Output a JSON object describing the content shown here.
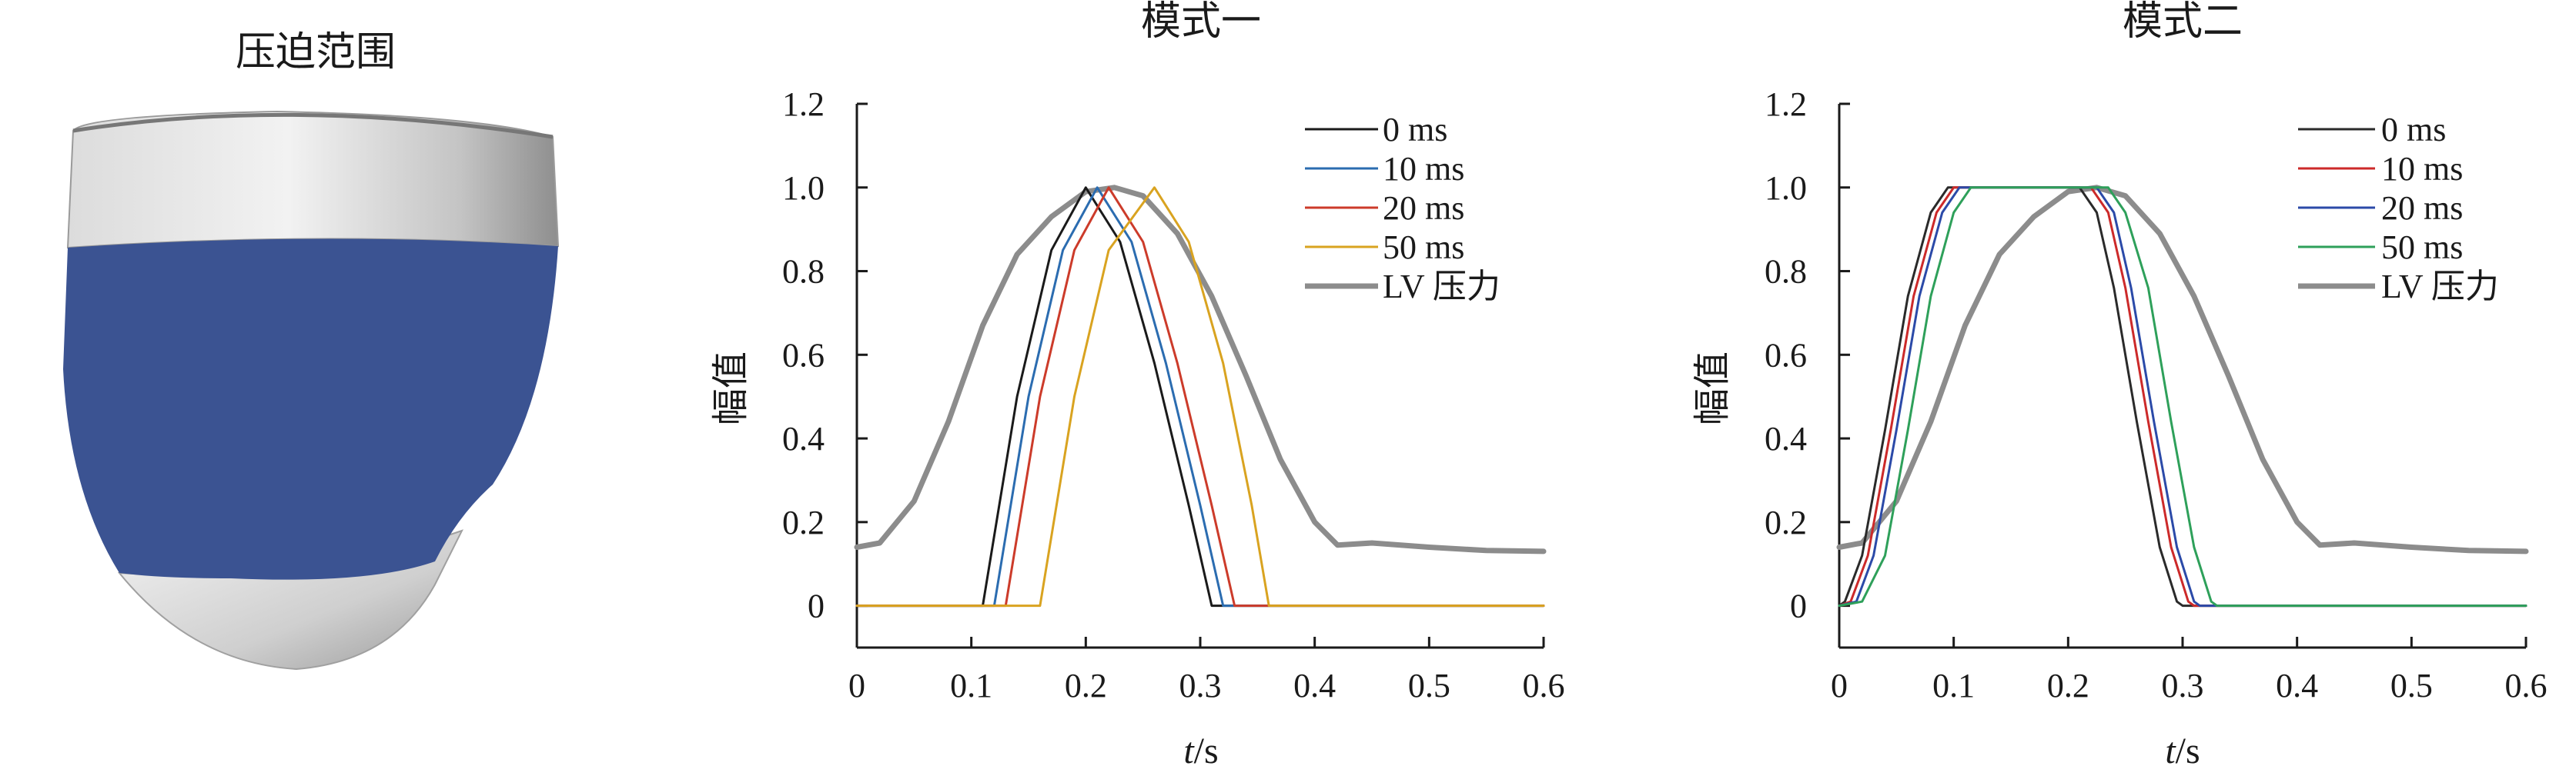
{
  "heart_panel": {
    "title": "压迫范围",
    "colors": {
      "band": "#3b5392",
      "tissue_light": "#f0f0f0",
      "tissue_dark": "#8c8c8c"
    }
  },
  "chart_data": [
    {
      "type": "line",
      "title": "模式一",
      "xlabel_italic": "t",
      "xlabel_unit": "/s",
      "ylabel": "幅值",
      "xlim": [
        0,
        0.6
      ],
      "ylim": [
        -0.1,
        1.2
      ],
      "xticks": [
        0,
        0.1,
        0.2,
        0.3,
        0.4,
        0.5,
        0.6
      ],
      "xtick_labels": [
        "0",
        "0.1",
        "0.2",
        "0.3",
        "0.4",
        "0.5",
        "0.6"
      ],
      "yticks": [
        0,
        0.2,
        0.4,
        0.6,
        0.8,
        1.0,
        1.2
      ],
      "ytick_labels": [
        "0",
        "0.2",
        "0.4",
        "0.6",
        "0.8",
        "1.0",
        "1.2"
      ],
      "grid": false,
      "legend_position": "top-right",
      "series": [
        {
          "name": "0 ms",
          "color": "#1a1a1a",
          "width": 3,
          "points": [
            [
              0,
              0
            ],
            [
              0.11,
              0
            ],
            [
              0.14,
              0.5
            ],
            [
              0.17,
              0.85
            ],
            [
              0.2,
              1.0
            ],
            [
              0.23,
              0.87
            ],
            [
              0.26,
              0.58
            ],
            [
              0.29,
              0.24
            ],
            [
              0.31,
              0
            ],
            [
              0.6,
              0
            ]
          ]
        },
        {
          "name": "10 ms",
          "color": "#2b6cb0",
          "width": 3,
          "points": [
            [
              0,
              0
            ],
            [
              0.12,
              0
            ],
            [
              0.15,
              0.5
            ],
            [
              0.18,
              0.85
            ],
            [
              0.21,
              1.0
            ],
            [
              0.24,
              0.87
            ],
            [
              0.27,
              0.58
            ],
            [
              0.3,
              0.24
            ],
            [
              0.32,
              0
            ],
            [
              0.6,
              0
            ]
          ]
        },
        {
          "name": "20 ms",
          "color": "#cc3b2a",
          "width": 3,
          "points": [
            [
              0,
              0
            ],
            [
              0.13,
              0
            ],
            [
              0.16,
              0.5
            ],
            [
              0.19,
              0.85
            ],
            [
              0.22,
              1.0
            ],
            [
              0.25,
              0.87
            ],
            [
              0.28,
              0.58
            ],
            [
              0.31,
              0.24
            ],
            [
              0.33,
              0
            ],
            [
              0.6,
              0
            ]
          ]
        },
        {
          "name": "50 ms",
          "color": "#d9a320",
          "width": 3,
          "points": [
            [
              0,
              0
            ],
            [
              0.16,
              0
            ],
            [
              0.19,
              0.5
            ],
            [
              0.22,
              0.85
            ],
            [
              0.26,
              1.0
            ],
            [
              0.29,
              0.87
            ],
            [
              0.32,
              0.58
            ],
            [
              0.345,
              0.24
            ],
            [
              0.36,
              0
            ],
            [
              0.6,
              0
            ]
          ]
        },
        {
          "name": "LV 压力",
          "color": "#8c8c8c",
          "width": 7,
          "points": [
            [
              0,
              0.14
            ],
            [
              0.02,
              0.15
            ],
            [
              0.05,
              0.25
            ],
            [
              0.08,
              0.44
            ],
            [
              0.11,
              0.67
            ],
            [
              0.14,
              0.84
            ],
            [
              0.17,
              0.93
            ],
            [
              0.2,
              0.99
            ],
            [
              0.225,
              1.0
            ],
            [
              0.25,
              0.98
            ],
            [
              0.28,
              0.89
            ],
            [
              0.31,
              0.74
            ],
            [
              0.34,
              0.55
            ],
            [
              0.37,
              0.35
            ],
            [
              0.4,
              0.2
            ],
            [
              0.42,
              0.145
            ],
            [
              0.45,
              0.15
            ],
            [
              0.5,
              0.14
            ],
            [
              0.55,
              0.132
            ],
            [
              0.6,
              0.13
            ]
          ]
        }
      ]
    },
    {
      "type": "line",
      "title": "模式二",
      "xlabel_italic": "t",
      "xlabel_unit": "/s",
      "ylabel": "幅值",
      "xlim": [
        0,
        0.6
      ],
      "ylim": [
        -0.1,
        1.2
      ],
      "xticks": [
        0,
        0.1,
        0.2,
        0.3,
        0.4,
        0.5,
        0.6
      ],
      "xtick_labels": [
        "0",
        "0.1",
        "0.2",
        "0.3",
        "0.4",
        "0.5",
        "0.6"
      ],
      "yticks": [
        0,
        0.2,
        0.4,
        0.6,
        0.8,
        1.0,
        1.2
      ],
      "ytick_labels": [
        "0",
        "0.2",
        "0.4",
        "0.6",
        "0.8",
        "1.0",
        "1.2"
      ],
      "grid": false,
      "legend_position": "top-right",
      "series": [
        {
          "name": "0 ms",
          "color": "#2a2a2a",
          "width": 3,
          "points": [
            [
              0,
              0
            ],
            [
              0.005,
              0.01
            ],
            [
              0.02,
              0.12
            ],
            [
              0.04,
              0.42
            ],
            [
              0.06,
              0.74
            ],
            [
              0.08,
              0.94
            ],
            [
              0.095,
              1.0
            ],
            [
              0.21,
              1.0
            ],
            [
              0.225,
              0.94
            ],
            [
              0.24,
              0.76
            ],
            [
              0.26,
              0.44
            ],
            [
              0.28,
              0.14
            ],
            [
              0.295,
              0.01
            ],
            [
              0.3,
              0
            ],
            [
              0.6,
              0
            ]
          ]
        },
        {
          "name": "10 ms",
          "color": "#cc2a2a",
          "width": 3,
          "points": [
            [
              0,
              0
            ],
            [
              0.01,
              0.01
            ],
            [
              0.025,
              0.12
            ],
            [
              0.045,
              0.42
            ],
            [
              0.065,
              0.74
            ],
            [
              0.085,
              0.94
            ],
            [
              0.1,
              1.0
            ],
            [
              0.22,
              1.0
            ],
            [
              0.235,
              0.94
            ],
            [
              0.25,
              0.76
            ],
            [
              0.27,
              0.44
            ],
            [
              0.29,
              0.14
            ],
            [
              0.305,
              0.01
            ],
            [
              0.31,
              0
            ],
            [
              0.6,
              0
            ]
          ]
        },
        {
          "name": "20 ms",
          "color": "#2b4aa8",
          "width": 3,
          "points": [
            [
              0,
              0
            ],
            [
              0.015,
              0.01
            ],
            [
              0.03,
              0.12
            ],
            [
              0.05,
              0.42
            ],
            [
              0.07,
              0.74
            ],
            [
              0.09,
              0.94
            ],
            [
              0.105,
              1.0
            ],
            [
              0.225,
              1.0
            ],
            [
              0.24,
              0.94
            ],
            [
              0.255,
              0.76
            ],
            [
              0.275,
              0.44
            ],
            [
              0.295,
              0.14
            ],
            [
              0.31,
              0.01
            ],
            [
              0.315,
              0
            ],
            [
              0.6,
              0
            ]
          ]
        },
        {
          "name": "50 ms",
          "color": "#2ea05a",
          "width": 3,
          "points": [
            [
              0,
              0
            ],
            [
              0.02,
              0.01
            ],
            [
              0.04,
              0.12
            ],
            [
              0.06,
              0.42
            ],
            [
              0.08,
              0.74
            ],
            [
              0.1,
              0.94
            ],
            [
              0.115,
              1.0
            ],
            [
              0.235,
              1.0
            ],
            [
              0.25,
              0.94
            ],
            [
              0.27,
              0.76
            ],
            [
              0.29,
              0.44
            ],
            [
              0.31,
              0.14
            ],
            [
              0.325,
              0.01
            ],
            [
              0.33,
              0
            ],
            [
              0.6,
              0
            ]
          ]
        },
        {
          "name": "LV 压力",
          "color": "#8c8c8c",
          "width": 7,
          "points": [
            [
              0,
              0.14
            ],
            [
              0.02,
              0.15
            ],
            [
              0.05,
              0.25
            ],
            [
              0.08,
              0.44
            ],
            [
              0.11,
              0.67
            ],
            [
              0.14,
              0.84
            ],
            [
              0.17,
              0.93
            ],
            [
              0.2,
              0.99
            ],
            [
              0.225,
              1.0
            ],
            [
              0.25,
              0.98
            ],
            [
              0.28,
              0.89
            ],
            [
              0.31,
              0.74
            ],
            [
              0.34,
              0.55
            ],
            [
              0.37,
              0.35
            ],
            [
              0.4,
              0.2
            ],
            [
              0.42,
              0.145
            ],
            [
              0.45,
              0.15
            ],
            [
              0.5,
              0.14
            ],
            [
              0.55,
              0.132
            ],
            [
              0.6,
              0.13
            ]
          ]
        }
      ]
    }
  ]
}
